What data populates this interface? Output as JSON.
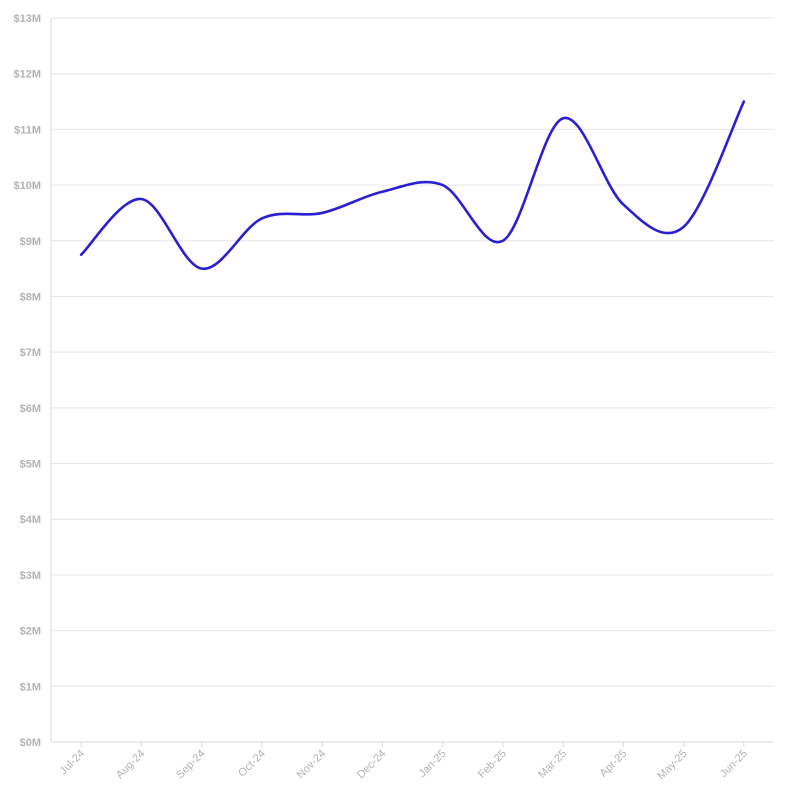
{
  "chart_data": {
    "type": "line",
    "title": "",
    "xlabel": "",
    "ylabel": "",
    "categories": [
      "Jul-24",
      "Aug-24",
      "Sep-24",
      "Oct-24",
      "Nov-24",
      "Dec-24",
      "Jan-25",
      "Feb-25",
      "Mar-25",
      "Apr-25",
      "May-25",
      "Jun-25"
    ],
    "series": [
      {
        "color": "#2a1fd1",
        "values": [
          8.75,
          9.75,
          8.5,
          9.4,
          9.5,
          9.88,
          10.0,
          9.0,
          11.2,
          9.65,
          9.25,
          11.5
        ]
      }
    ],
    "ylim": [
      0,
      13
    ],
    "y_unit": "millions USD",
    "y_ticks": [
      "$0M",
      "$1M",
      "$2M",
      "$3M",
      "$4M",
      "$5M",
      "$6M",
      "$7M",
      "$8M",
      "$9M",
      "$10M",
      "$11M",
      "$12M",
      "$13M"
    ],
    "grid": true,
    "legend": "none",
    "curve": "smooth"
  }
}
